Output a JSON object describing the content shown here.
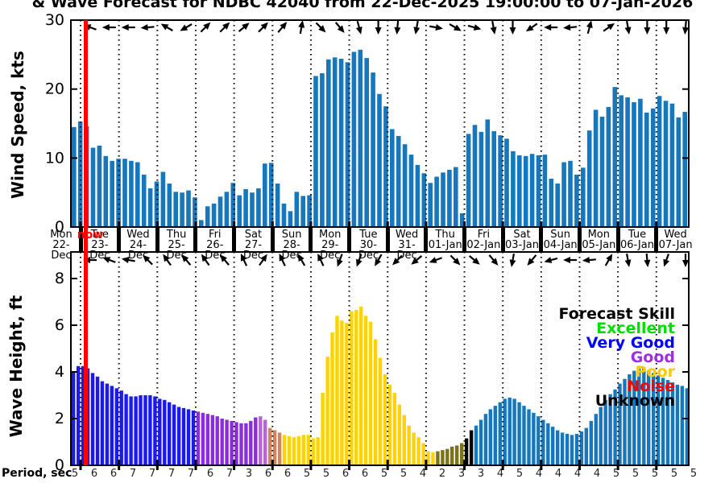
{
  "title": "& Wave Forecast for NDBC 42040 from 22-Dec-2025 19:00:00 to 07-Jan-2026",
  "now_label": "now",
  "legend": {
    "title": "Forecast Skill",
    "entries": [
      {
        "label": "Excellent",
        "color": "#00DD00"
      },
      {
        "label": "Very Good",
        "color": "#0000FF"
      },
      {
        "label": "Good",
        "color": "#9B30E0"
      },
      {
        "label": "Poor",
        "color": "#FFC800"
      },
      {
        "label": "Noise",
        "color": "#FF0000"
      },
      {
        "label": "Unknown",
        "color": "#000000"
      }
    ]
  },
  "x_axis": {
    "days": [
      {
        "dow": "Mon",
        "date": "22-Dec"
      },
      {
        "dow": "Tue",
        "date": "23-Dec"
      },
      {
        "dow": "Wed",
        "date": "24-Dec"
      },
      {
        "dow": "Thu",
        "date": "25-Dec"
      },
      {
        "dow": "Fri",
        "date": "26-Dec"
      },
      {
        "dow": "Sat",
        "date": "27-Dec"
      },
      {
        "dow": "Sun",
        "date": "28-Dec"
      },
      {
        "dow": "Mon",
        "date": "29-Dec"
      },
      {
        "dow": "Tue",
        "date": "30-Dec"
      },
      {
        "dow": "Wed",
        "date": "31-Dec"
      },
      {
        "dow": "Thu",
        "date": "01-Jan"
      },
      {
        "dow": "Fri",
        "date": "02-Jan"
      },
      {
        "dow": "Sat",
        "date": "03-Jan"
      },
      {
        "dow": "Sun",
        "date": "04-Jan"
      },
      {
        "dow": "Mon",
        "date": "05-Jan"
      },
      {
        "dow": "Tue",
        "date": "06-Jan"
      },
      {
        "dow": "Wed",
        "date": "07-Jan"
      }
    ]
  },
  "chart_data": [
    {
      "type": "bar",
      "name": "wind",
      "ylabel": "Wind Speed, kts",
      "yticks": [
        0,
        10,
        20,
        30
      ],
      "ylim": [
        0,
        30
      ],
      "grid": "vertical-dotted-daily",
      "bar_color": "#1777BC",
      "values": [
        14.5,
        15.3,
        14.6,
        11.5,
        11.8,
        10.3,
        9.6,
        9.9,
        9.9,
        9.6,
        9.4,
        7.6,
        5.6,
        6.6,
        8.0,
        6.3,
        5.1,
        5.0,
        5.3,
        4.3,
        1.0,
        3.0,
        3.4,
        4.4,
        5.1,
        6.4,
        4.6,
        5.5,
        5.0,
        5.6,
        9.2,
        9.3,
        6.3,
        3.4,
        2.3,
        5.1,
        4.5,
        4.6,
        21.9,
        22.3,
        24.3,
        24.6,
        24.4,
        23.9,
        25.4,
        25.7,
        24.5,
        22.4,
        19.3,
        17.5,
        14.2,
        13.2,
        12.0,
        10.5,
        9.0,
        7.8,
        6.4,
        7.3,
        7.9,
        8.3,
        8.7,
        2.0,
        13.5,
        14.8,
        13.8,
        15.6,
        13.9,
        13.3,
        12.8,
        11.0,
        10.4,
        10.3,
        10.6,
        10.4,
        10.5,
        7.0,
        6.3,
        9.4,
        9.6,
        7.6,
        8.6,
        14.0,
        17.0,
        16.0,
        17.4,
        20.3,
        19.1,
        18.8,
        18.1,
        18.6,
        16.6,
        17.2,
        19.0,
        18.3,
        17.9,
        15.9,
        16.7
      ],
      "arrow_directions_deg": [
        160,
        180,
        180,
        185,
        150,
        210,
        45,
        45,
        40,
        45,
        50,
        80,
        315,
        310,
        285,
        270,
        265,
        260,
        350,
        330,
        345,
        280,
        270,
        215,
        180,
        185,
        75,
        35,
        280,
        270,
        270,
        265
      ]
    },
    {
      "type": "bar",
      "name": "wave",
      "ylabel": "Wave Height, ft",
      "yticks": [
        0,
        2,
        4,
        6,
        8
      ],
      "ylim": [
        0,
        9.1
      ],
      "grid": "vertical-dotted-daily",
      "period_label": "Period, sec",
      "periods": [
        5,
        6,
        6,
        7,
        7,
        7,
        7,
        6,
        7,
        3,
        6,
        6,
        5,
        5,
        6,
        6,
        5,
        5,
        4,
        2,
        3,
        3,
        4,
        5,
        4,
        4,
        4,
        4,
        5,
        5,
        5,
        5,
        5
      ],
      "skill_palette": {
        "B": "#1A1AEE",
        "P": "#8B2BE2",
        "O": "#B864D8",
        "S": "#D2845C",
        "Y": "#FFD200",
        "L": "#7D7410",
        "K": "#000000",
        "T": "#1777BC"
      },
      "bar_skill": "BBBBBBBBBBBBBBBBBBBBBBBBBBPPPPPPPPPPPPPOOSSSYYYYYYYYYYYYYYYYYYYYYYYYYYYYYYYYLLLLLLKKTTTTTTTTTTTTTTTTTTTTTTTTTTTTTTTTTTTTTTTTTTTTT",
      "values": [
        4.0,
        4.25,
        4.25,
        4.15,
        3.95,
        3.8,
        3.6,
        3.5,
        3.4,
        3.3,
        3.2,
        3.05,
        2.95,
        2.95,
        3.0,
        3.0,
        3.0,
        2.95,
        2.85,
        2.8,
        2.7,
        2.6,
        2.5,
        2.45,
        2.4,
        2.35,
        2.3,
        2.25,
        2.2,
        2.15,
        2.1,
        2.0,
        1.95,
        1.9,
        1.85,
        1.8,
        1.8,
        1.9,
        2.05,
        2.1,
        1.95,
        1.6,
        1.5,
        1.4,
        1.3,
        1.25,
        1.2,
        1.25,
        1.3,
        1.3,
        1.15,
        1.2,
        3.1,
        4.65,
        5.7,
        6.4,
        6.2,
        6.1,
        6.6,
        6.65,
        6.8,
        6.4,
        6.15,
        5.4,
        4.6,
        3.9,
        3.45,
        3.1,
        2.6,
        2.15,
        1.7,
        1.4,
        1.2,
        0.95,
        0.6,
        0.55,
        0.6,
        0.65,
        0.7,
        0.8,
        0.85,
        0.95,
        1.15,
        1.5,
        1.7,
        1.95,
        2.2,
        2.4,
        2.55,
        2.7,
        2.85,
        2.9,
        2.85,
        2.7,
        2.55,
        2.4,
        2.25,
        2.1,
        1.95,
        1.8,
        1.65,
        1.5,
        1.4,
        1.35,
        1.3,
        1.35,
        1.45,
        1.6,
        1.9,
        2.2,
        2.5,
        2.8,
        3.05,
        3.25,
        3.5,
        3.7,
        3.9,
        4.05,
        4.15,
        4.2,
        4.05,
        3.95,
        3.85,
        3.75,
        3.65,
        3.55,
        3.45,
        3.4,
        3.3
      ],
      "arrow_directions_deg": [
        180,
        160,
        170,
        135,
        125,
        130,
        125,
        130,
        115,
        55,
        115,
        120,
        115,
        250,
        250,
        240,
        225,
        220,
        200,
        315,
        320,
        310,
        260,
        230,
        195,
        180,
        185,
        60,
        280,
        275,
        250,
        270
      ]
    }
  ],
  "now_line_color": "#FF0000"
}
